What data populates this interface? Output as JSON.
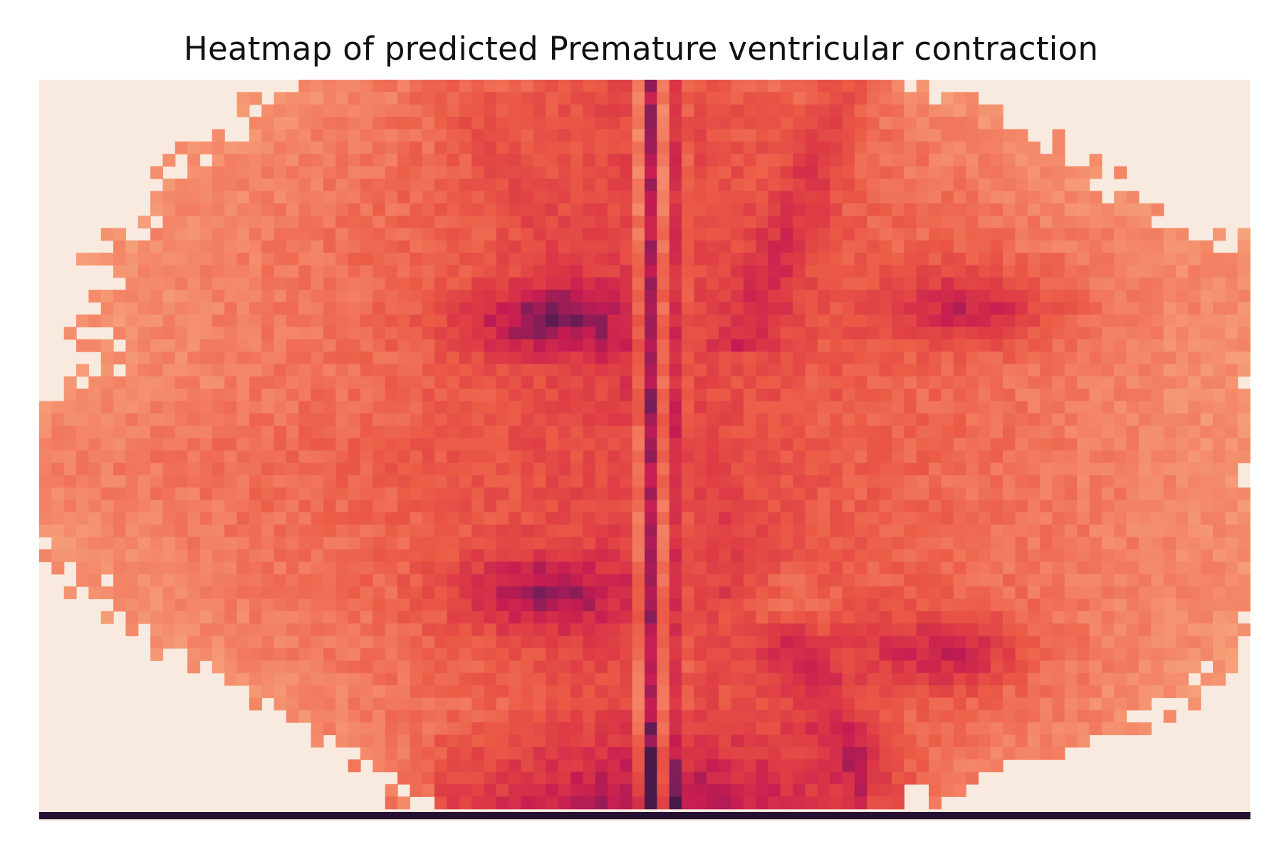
{
  "chart_data": {
    "type": "heatmap",
    "title": "Heatmap of predicted Premature ventricular contraction",
    "xlabel": "",
    "ylabel": "",
    "axes_visible": false,
    "grid": false,
    "legend": "none",
    "colormap": "rocket",
    "background_color": "#f9eadf",
    "grid_shape": {
      "columns": 98,
      "rows": 60
    },
    "value_range": [
      0,
      1
    ],
    "notes_on_values": "Values are relative density levels (0 = empty/background, 1 = darkest). Read from colour; the bottom row is the darkest band across the full width.",
    "structure": {
      "left_lobe_peaks": [
        {
          "col": 40,
          "row": 19,
          "value": 0.78
        },
        {
          "col": 40,
          "row": 41,
          "value": 0.82
        }
      ],
      "right_lobe_peaks": [
        {
          "col": 75,
          "row": 18,
          "value": 0.78
        },
        {
          "col": 73,
          "row": 46,
          "value": 0.8
        }
      ],
      "central_dark_column": {
        "col": 49,
        "value": 0.85
      },
      "bottom_band_value": 0.98
    }
  }
}
